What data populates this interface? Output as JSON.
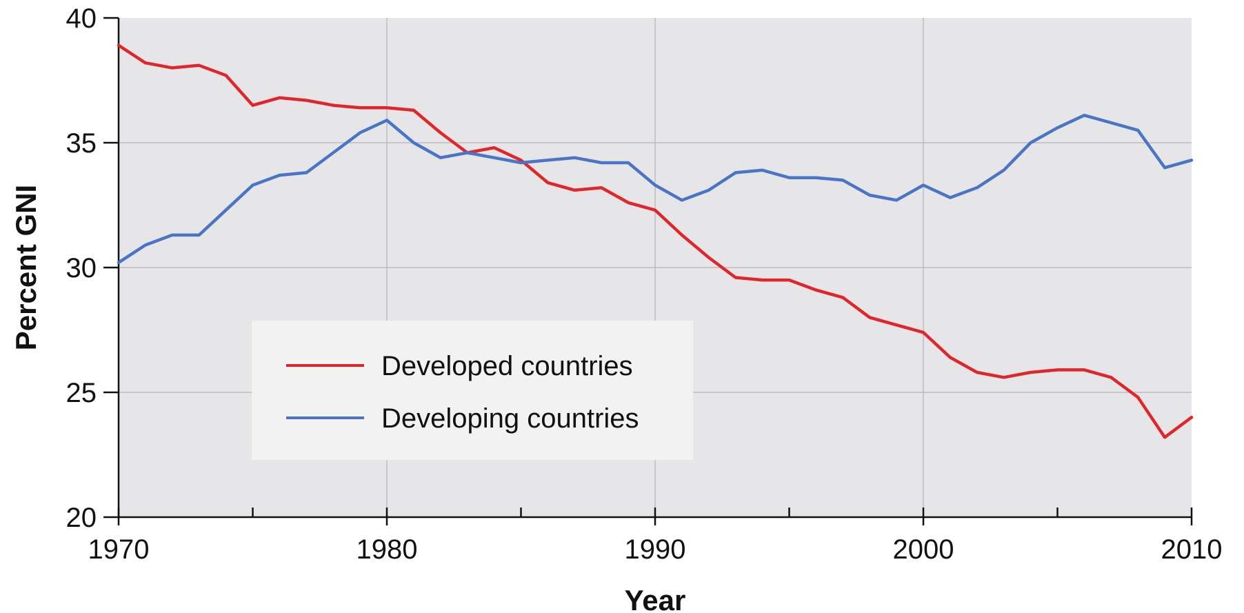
{
  "chart_data": {
    "type": "line",
    "xlabel": "Year",
    "ylabel": "Percent GNI",
    "xlim": [
      1970,
      2010
    ],
    "ylim": [
      20,
      40
    ],
    "x_ticks": [
      1970,
      1980,
      1990,
      2000,
      2010
    ],
    "x_tick_labels": [
      "1970",
      "1980",
      "1990",
      "2000",
      "2010"
    ],
    "y_ticks": [
      20,
      25,
      30,
      35,
      40
    ],
    "y_tick_labels": [
      "20",
      "25",
      "30",
      "35",
      "40"
    ],
    "grid": true,
    "legend_position": "center-left",
    "x": [
      1970,
      1971,
      1972,
      1973,
      1974,
      1975,
      1976,
      1977,
      1978,
      1979,
      1980,
      1981,
      1982,
      1983,
      1984,
      1985,
      1986,
      1987,
      1988,
      1989,
      1990,
      1991,
      1992,
      1993,
      1994,
      1995,
      1996,
      1997,
      1998,
      1999,
      2000,
      2001,
      2002,
      2003,
      2004,
      2005,
      2006,
      2007,
      2008,
      2009,
      2010
    ],
    "series": [
      {
        "name": "Developed countries",
        "color": "#e0262b",
        "values": [
          38.9,
          38.2,
          38.0,
          38.1,
          37.7,
          36.5,
          36.8,
          36.7,
          36.5,
          36.4,
          36.4,
          36.3,
          35.4,
          34.6,
          34.8,
          34.3,
          33.4,
          33.1,
          33.2,
          32.6,
          32.3,
          31.3,
          30.4,
          29.6,
          29.5,
          29.5,
          29.1,
          28.8,
          28.0,
          27.7,
          27.4,
          26.4,
          25.8,
          25.6,
          25.8,
          25.9,
          25.9,
          25.6,
          24.8,
          23.2,
          24.0
        ]
      },
      {
        "name": "Developing countries",
        "color": "#4a74c4",
        "values": [
          30.2,
          30.9,
          31.3,
          31.3,
          32.3,
          33.3,
          33.7,
          33.8,
          34.6,
          35.4,
          35.9,
          35.0,
          34.4,
          34.6,
          34.4,
          34.2,
          34.3,
          34.4,
          34.2,
          34.2,
          33.3,
          32.7,
          33.1,
          33.8,
          33.9,
          33.6,
          33.6,
          33.5,
          32.9,
          32.7,
          33.3,
          32.8,
          33.2,
          33.9,
          35.0,
          35.6,
          36.1,
          35.8,
          35.5,
          34.0,
          34.3
        ]
      }
    ]
  }
}
